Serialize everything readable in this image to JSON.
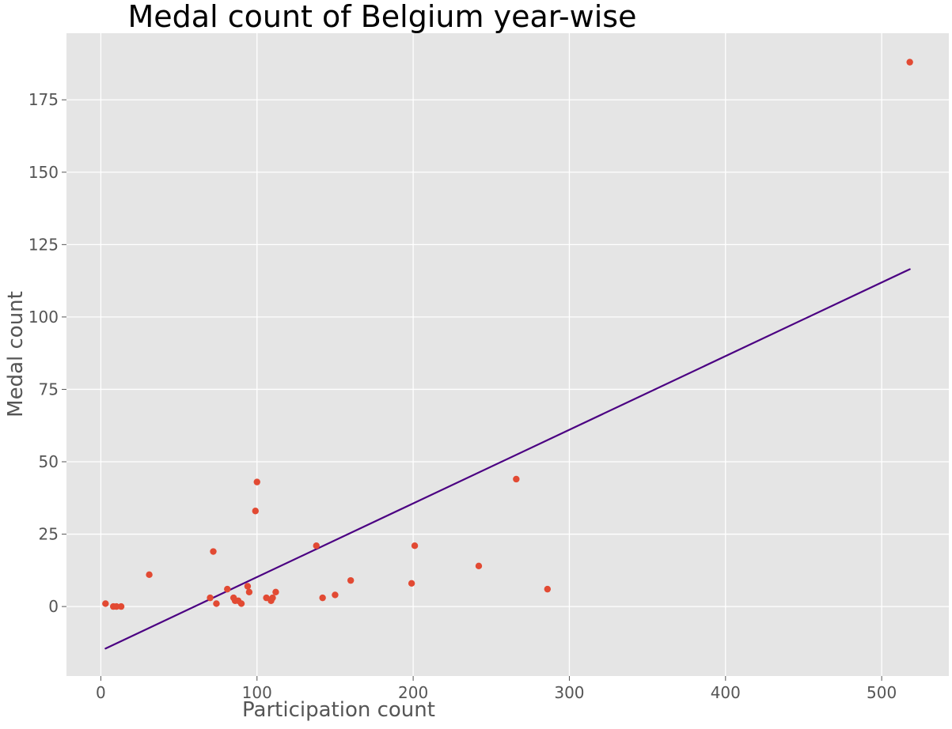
{
  "chart_data": {
    "type": "scatter",
    "title": "Medal count of Belgium year-wise",
    "xlabel": "Participation count",
    "ylabel": "Medal count",
    "xlim": [
      -22,
      543
    ],
    "ylim": [
      -24,
      198
    ],
    "xticks": [
      0,
      100,
      200,
      300,
      400,
      500
    ],
    "yticks": [
      0,
      25,
      50,
      75,
      100,
      125,
      150,
      175
    ],
    "grid": true,
    "colors": {
      "background": "#e5e5e5",
      "grid": "#ffffff",
      "points": "#e24a33",
      "line": "#4b0082"
    },
    "series": [
      {
        "type": "scatter",
        "points": [
          {
            "x": 3,
            "y": 1
          },
          {
            "x": 8,
            "y": 0
          },
          {
            "x": 10,
            "y": 0
          },
          {
            "x": 13,
            "y": 0
          },
          {
            "x": 31,
            "y": 11
          },
          {
            "x": 70,
            "y": 3
          },
          {
            "x": 72,
            "y": 19
          },
          {
            "x": 74,
            "y": 1
          },
          {
            "x": 81,
            "y": 6
          },
          {
            "x": 85,
            "y": 3
          },
          {
            "x": 86,
            "y": 2
          },
          {
            "x": 88,
            "y": 2
          },
          {
            "x": 90,
            "y": 1
          },
          {
            "x": 94,
            "y": 7
          },
          {
            "x": 95,
            "y": 5
          },
          {
            "x": 99,
            "y": 33
          },
          {
            "x": 100,
            "y": 43
          },
          {
            "x": 106,
            "y": 3
          },
          {
            "x": 109,
            "y": 2
          },
          {
            "x": 110,
            "y": 3
          },
          {
            "x": 112,
            "y": 5
          },
          {
            "x": 138,
            "y": 21
          },
          {
            "x": 142,
            "y": 3
          },
          {
            "x": 150,
            "y": 4
          },
          {
            "x": 160,
            "y": 9
          },
          {
            "x": 199,
            "y": 8
          },
          {
            "x": 201,
            "y": 21
          },
          {
            "x": 242,
            "y": 14
          },
          {
            "x": 266,
            "y": 44
          },
          {
            "x": 286,
            "y": 6
          },
          {
            "x": 518,
            "y": 188
          }
        ]
      },
      {
        "type": "line",
        "points": [
          {
            "x": 3,
            "y": -14.5
          },
          {
            "x": 518,
            "y": 116.5
          }
        ]
      }
    ]
  }
}
